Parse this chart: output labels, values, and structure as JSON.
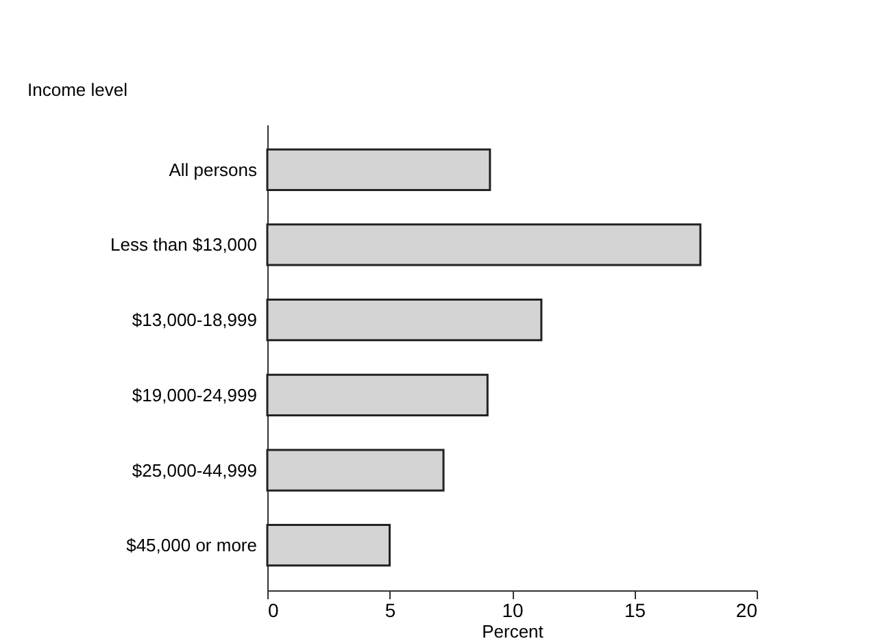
{
  "chart_data": {
    "type": "bar",
    "orientation": "horizontal",
    "ylabel": "Income level",
    "xlabel": "Percent",
    "categories": [
      "All persons",
      "Less than $13,000",
      "$13,000-18,999",
      "$19,000-24,999",
      "$25,000-44,999",
      "$45,000 or more"
    ],
    "values": [
      9.1,
      17.7,
      11.2,
      9.0,
      7.2,
      5.0
    ],
    "color": "#d4d4d4",
    "xlim": [
      0,
      20
    ],
    "xticks": [
      0,
      5,
      10,
      15,
      20
    ],
    "grid": false
  }
}
